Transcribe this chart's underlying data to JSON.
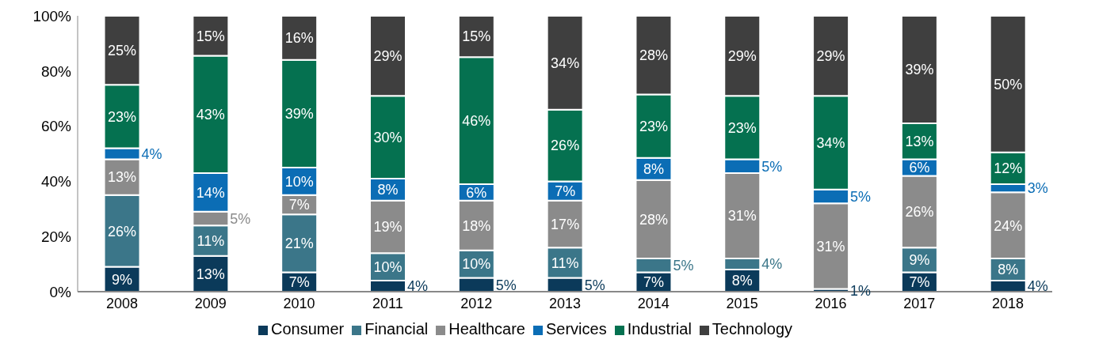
{
  "chart_data": {
    "type": "bar",
    "stacked": true,
    "categories": [
      "2008",
      "2009",
      "2010",
      "2011",
      "2012",
      "2013",
      "2014",
      "2015",
      "2016",
      "2017",
      "2018"
    ],
    "series": [
      {
        "name": "Consumer",
        "color": "#0b3a5a",
        "values": [
          9,
          13,
          7,
          4,
          5,
          5,
          7,
          8,
          1,
          7,
          4
        ],
        "value_labels": [
          "9%",
          "13%",
          "7%",
          "4%",
          "5%",
          "5%",
          "7%",
          "8%",
          "1%",
          "7%",
          "4%"
        ]
      },
      {
        "name": "Financial",
        "color": "#3b7689",
        "values": [
          26,
          11,
          21,
          10,
          10,
          11,
          5,
          4,
          null,
          9,
          8
        ],
        "value_labels": [
          "26%",
          "11%",
          "21%",
          "10%",
          "10%",
          "11%",
          "5%",
          "4%",
          null,
          "9%",
          "8%"
        ]
      },
      {
        "name": "Healthcare",
        "color": "#8b8b8b",
        "values": [
          13,
          5,
          7,
          19,
          18,
          17,
          28.5,
          31,
          31,
          26,
          24
        ],
        "value_labels": [
          "13%",
          "5%",
          "7%",
          "19%",
          "18%",
          "17%",
          "28%",
          "31%",
          "31%",
          "26%",
          "24%"
        ]
      },
      {
        "name": "Services",
        "color": "#0b6db5",
        "values": [
          4,
          14,
          10,
          8,
          6,
          7,
          8,
          5,
          5,
          6,
          3
        ],
        "value_labels": [
          "4%",
          "14%",
          "10%",
          "8%",
          "6%",
          "7%",
          "8%",
          "5%",
          "5%",
          "6%",
          "3%"
        ]
      },
      {
        "name": "Industrial",
        "color": "#057150",
        "values": [
          23,
          42.5,
          39,
          30,
          46,
          26,
          23,
          23,
          34,
          13,
          11.5
        ],
        "value_labels": [
          "23%",
          "43%",
          "39%",
          "30%",
          "46%",
          "26%",
          "23%",
          "23%",
          "34%",
          "13%",
          "12%"
        ]
      },
      {
        "name": "Technology",
        "color": "#3f3f3f",
        "values": [
          25,
          14.5,
          16,
          29,
          15,
          34,
          28.5,
          29,
          29,
          39,
          49.5
        ],
        "value_labels": [
          "25%",
          "15%",
          "16%",
          "29%",
          "15%",
          "34%",
          "28%",
          "29%",
          "29%",
          "39%",
          "50%"
        ]
      }
    ],
    "ylim": [
      0,
      100
    ],
    "yticks": [
      {
        "value": 0,
        "label": "0%"
      },
      {
        "value": 20,
        "label": "20%"
      },
      {
        "value": 40,
        "label": "40%"
      },
      {
        "value": 60,
        "label": "60%"
      },
      {
        "value": 80,
        "label": "80%"
      },
      {
        "value": 100,
        "label": "100%"
      }
    ],
    "legend": "bottom",
    "grid": false
  }
}
